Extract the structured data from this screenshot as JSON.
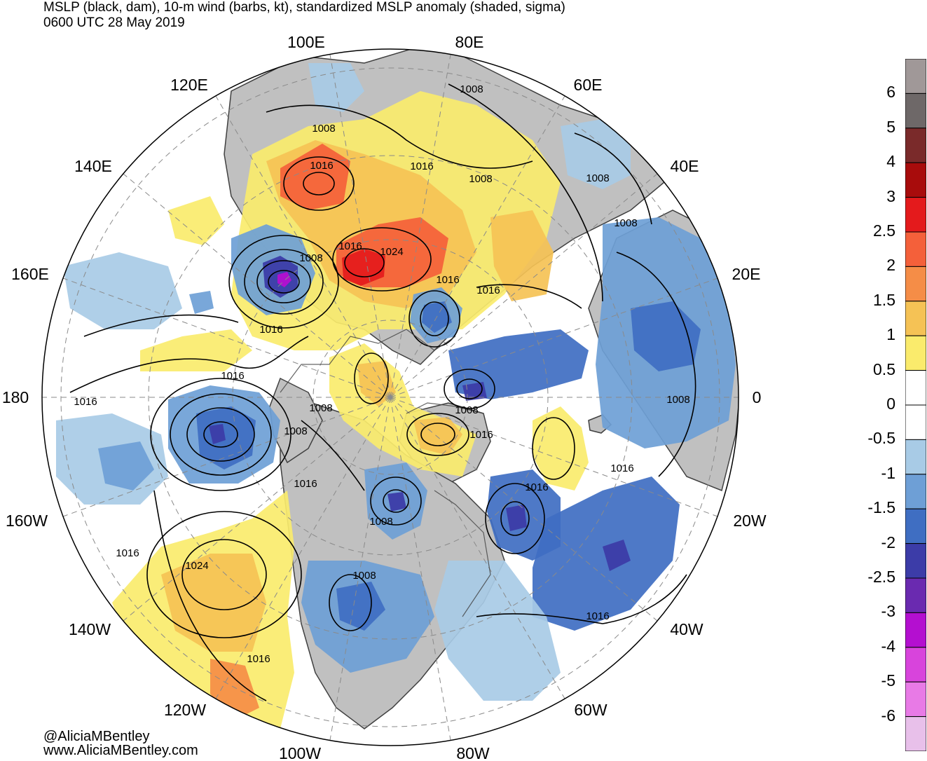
{
  "title": {
    "line1": "MSLP (black, dam), 10-m wind (barbs, kt), standardized MSLP anomaly (shaded, sigma)",
    "line2": "0600 UTC 28 May 2019"
  },
  "credits": {
    "twitter": "@AliciaMBentley",
    "website": "www.AliciaMBentley.com"
  },
  "longitude_labels": [
    "100E",
    "80E",
    "60E",
    "40E",
    "20E",
    "0",
    "20W",
    "40W",
    "60W",
    "80W",
    "100W",
    "120W",
    "140W",
    "160W",
    "180",
    "160E",
    "140E",
    "120E"
  ],
  "isobar_labels": [
    "1008",
    "1016",
    "1016",
    "1008",
    "1008",
    "1008",
    "1016",
    "1024",
    "1008",
    "1016",
    "1016",
    "1016",
    "1016",
    "1008",
    "1008",
    "1008",
    "1016",
    "1016",
    "1008",
    "1016",
    "1008",
    "1008",
    "1016",
    "1016",
    "1024",
    "1016",
    "1016",
    "1008",
    "1016"
  ],
  "colorbar": {
    "labels": [
      "6",
      "5",
      "4",
      "3",
      "2.5",
      "2",
      "1.5",
      "1",
      "0.5",
      "0",
      "-0.5",
      "-1",
      "-1.5",
      "-2",
      "-2.5",
      "-3",
      "-4",
      "-5",
      "-6"
    ],
    "colors": [
      "#a09898",
      "#6e6868",
      "#7a2a2a",
      "#a80c0c",
      "#e41a1c",
      "#f4603a",
      "#f58d47",
      "#f5c255",
      "#faeb6c",
      "#ffffff",
      "#ffffff",
      "#a8cbe6",
      "#6e9fd6",
      "#3f6ec2",
      "#3c3ca8",
      "#6a2ab0",
      "#b40fd0",
      "#d844dc",
      "#e87ae6",
      "#e8c0ea"
    ]
  },
  "colors": {
    "land": "#c0c0c0",
    "ocean": "#ffffff",
    "isobar": "#000000",
    "coast": "#404040",
    "grid": "#8a8a8a"
  }
}
